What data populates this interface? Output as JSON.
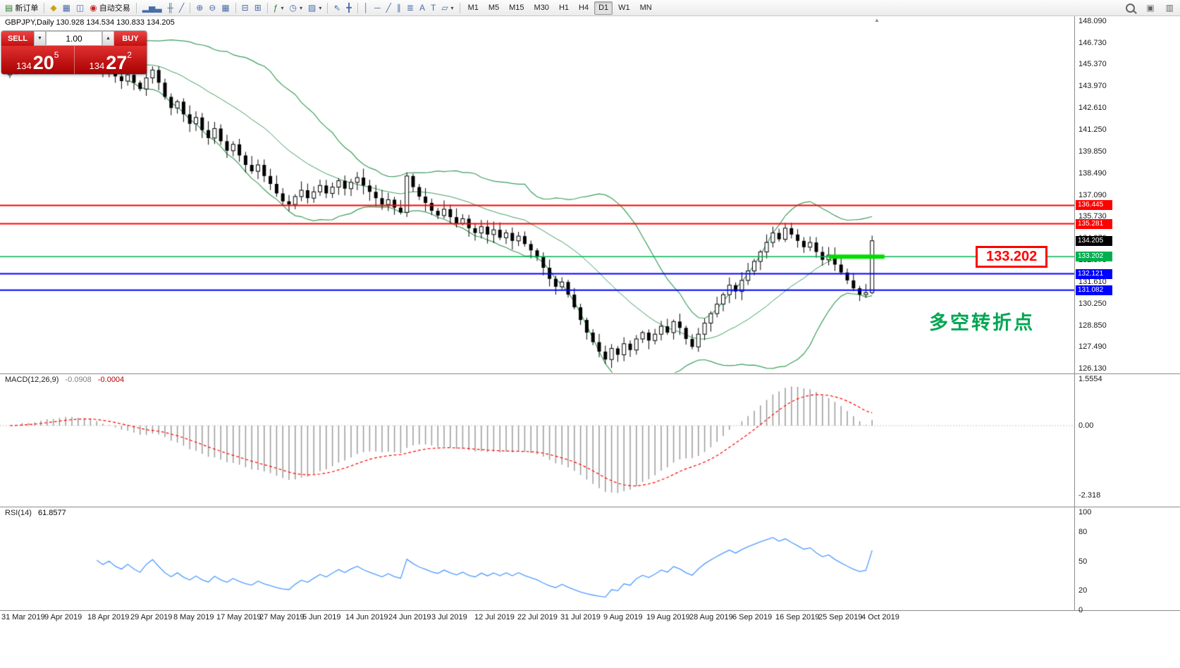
{
  "toolbar": {
    "groups": [
      {
        "items": [
          {
            "name": "new-order-button",
            "glyph": "▤",
            "glyph_color": "#2e7d32",
            "label": "新订单"
          }
        ]
      },
      {
        "items": [
          {
            "name": "market-watch-button",
            "glyph": "◆",
            "glyph_color": "#c8a415"
          },
          {
            "name": "data-window-button",
            "glyph": "▦",
            "glyph_color": "#4a6da7"
          },
          {
            "name": "navigator-button",
            "glyph": "◫",
            "glyph_color": "#4a6da7"
          },
          {
            "name": "autotrading-button",
            "glyph": "◉",
            "glyph_color": "#cc2222",
            "label": "自动交易"
          }
        ]
      },
      {
        "items": [
          {
            "name": "bar-chart-button",
            "glyph": "▂▅▃"
          },
          {
            "name": "candlestick-chart-button",
            "glyph": "╫"
          },
          {
            "name": "line-chart-button",
            "glyph": "╱"
          }
        ]
      },
      {
        "items": [
          {
            "name": "zoom-in-button",
            "glyph": "⊕"
          },
          {
            "name": "zoom-out-button",
            "glyph": "⊖"
          },
          {
            "name": "tile-windows-button",
            "glyph": "▦"
          }
        ]
      },
      {
        "items": [
          {
            "name": "cascade-windows-button",
            "glyph": "⊟"
          },
          {
            "name": "arrange-windows-button",
            "glyph": "⊞"
          }
        ]
      },
      {
        "items": [
          {
            "name": "indicators-button",
            "glyph": "ƒ",
            "glyph_color": "#2e7d32",
            "dropdown": true
          },
          {
            "name": "periods-button",
            "glyph": "◷",
            "dropdown": true
          },
          {
            "name": "templates-button",
            "glyph": "▨",
            "dropdown": true
          }
        ]
      },
      {
        "items": [
          {
            "name": "cursor-button",
            "glyph": "⇖"
          },
          {
            "name": "crosshair-button",
            "glyph": "╋"
          }
        ]
      },
      {
        "items": [
          {
            "name": "vertical-line-button",
            "glyph": "│"
          },
          {
            "name": "horizontal-line-button",
            "glyph": "─"
          },
          {
            "name": "trendline-button",
            "glyph": "╱"
          },
          {
            "name": "channel-button",
            "glyph": "∥"
          },
          {
            "name": "fibonacci-button",
            "glyph": "≣"
          },
          {
            "name": "text-button",
            "glyph": "A"
          },
          {
            "name": "label-button",
            "glyph": "T"
          },
          {
            "name": "shapes-button",
            "glyph": "▱",
            "dropdown": true
          }
        ]
      }
    ],
    "timeframes": [
      {
        "label": "M1"
      },
      {
        "label": "M5"
      },
      {
        "label": "M15"
      },
      {
        "label": "M30"
      },
      {
        "label": "H1"
      },
      {
        "label": "H4"
      },
      {
        "label": "D1",
        "active": true
      },
      {
        "label": "W1"
      },
      {
        "label": "MN"
      }
    ],
    "right_items": [
      {
        "name": "search-button",
        "css_icon": "magnifier"
      },
      {
        "name": "fullscreen-button",
        "glyph": "▣"
      },
      {
        "name": "window-list-button",
        "glyph": "▥"
      }
    ]
  },
  "trade_panel": {
    "sell_label": "SELL",
    "buy_label": "BUY",
    "volume": "1.00",
    "caret_down": "▼",
    "caret_up": "▲",
    "sell_price": {
      "base": "134",
      "big": "20",
      "sup": "5"
    },
    "buy_price": {
      "base": "134",
      "big": "27",
      "sup": "2"
    }
  },
  "chart": {
    "header": "GBPJPY,Daily  130.928 134.534 130.833 134.205",
    "levels": [
      {
        "label": "136.445",
        "price": 136.445,
        "color": "#ff0000",
        "width": 2
      },
      {
        "label": "135.281",
        "price": 135.281,
        "color": "#ff0000",
        "width": 2
      },
      {
        "label": "134.205",
        "price": 134.205,
        "color": "#000000",
        "width": 1,
        "line": false,
        "current": true
      },
      {
        "label": "133.202",
        "price": 133.202,
        "color": "#00b050",
        "width": 1.5
      },
      {
        "label": "132.121",
        "price": 132.121,
        "color": "#0000ff",
        "width": 2
      },
      {
        "label": "131.082",
        "price": 131.082,
        "color": "#0000ff",
        "width": 2
      }
    ],
    "highlight_segment": {
      "price": 133.202,
      "from_index": 132,
      "to_index": 141,
      "color": "#00dd00",
      "width": 6
    }
  },
  "price_axis": {
    "ticks": [
      "148.090",
      "146.730",
      "145.370",
      "143.970",
      "142.610",
      "141.250",
      "139.850",
      "138.490",
      "137.090",
      "135.730",
      "134.370",
      "132.970",
      "131.610",
      "130.250",
      "128.850",
      "127.490",
      "126.130"
    ]
  },
  "macd": {
    "name": "MACD(12,26,9)",
    "value1": "-0.0908",
    "value2": "-0.0004",
    "ticks": [
      {
        "label": "1.5554",
        "value": 1.5554
      },
      {
        "label": "0.00",
        "value": 0
      },
      {
        "label": "-2.318",
        "value": -2.318
      }
    ]
  },
  "rsi": {
    "name": "RSI(14)",
    "value": "61.8577",
    "ticks": [
      {
        "label": "100",
        "value": 100
      },
      {
        "label": "80",
        "value": 80
      },
      {
        "label": "50",
        "value": 50
      },
      {
        "label": "20",
        "value": 20
      },
      {
        "label": "0",
        "value": 0
      }
    ]
  },
  "annotations": {
    "price_box": "133.202",
    "turning_point": "多空转折点"
  },
  "icons": {
    "shift_marker": "▲"
  },
  "colors": {
    "candle_outline": "#000000",
    "candle_bull_fill": "#ffffff",
    "candle_bear_fill": "#000000",
    "bollinger": "#3c9e5c",
    "macd_histogram": "#9a9a9a",
    "macd_signal": "#ff0000",
    "rsi_line": "#4f9bff"
  },
  "x_axis": {
    "dates": [
      "31 Mar 2019",
      "9 Apr 2019",
      "18 Apr 2019",
      "29 Apr 2019",
      "8 May 2019",
      "17 May 2019",
      "27 May 2019",
      "5 Jun 2019",
      "14 Jun 2019",
      "24 Jun 2019",
      "3 Jul 2019",
      "12 Jul 2019",
      "22 Jul 2019",
      "31 Jul 2019",
      "9 Aug 2019",
      "19 Aug 2019",
      "28 Aug 2019",
      "6 Sep 2019",
      "16 Sep 2019",
      "25 Sep 2019",
      "4 Oct 2019"
    ]
  },
  "chart_data": {
    "type": "candlestick",
    "symbol": "GBPJPY",
    "timeframe": "Daily",
    "last_ohlc": {
      "open": 130.928,
      "high": 134.534,
      "low": 130.833,
      "close": 134.205
    },
    "price_range": [
      126.13,
      148.09
    ],
    "closes": [
      145.1,
      145.5,
      145.8,
      145.4,
      145.7,
      146.0,
      146.3,
      145.9,
      146.2,
      146.4,
      146.1,
      145.8,
      146.0,
      145.6,
      145.2,
      144.8,
      145.1,
      144.6,
      144.3,
      144.7,
      144.2,
      143.8,
      144.5,
      145.0,
      144.2,
      143.3,
      142.6,
      143.0,
      142.2,
      141.6,
      142.0,
      141.2,
      140.7,
      141.3,
      140.5,
      139.9,
      140.3,
      139.6,
      139.0,
      138.6,
      139.0,
      138.3,
      137.8,
      137.2,
      136.7,
      136.5,
      137.0,
      137.4,
      136.9,
      137.3,
      137.7,
      137.2,
      137.6,
      138.0,
      137.5,
      137.9,
      138.2,
      137.7,
      137.3,
      136.9,
      136.5,
      136.8,
      136.3,
      136.0,
      138.3,
      137.6,
      137.0,
      136.6,
      136.1,
      135.8,
      136.2,
      135.7,
      135.3,
      135.6,
      135.0,
      134.7,
      135.1,
      134.6,
      134.9,
      134.4,
      134.7,
      134.2,
      134.5,
      134.0,
      133.6,
      133.2,
      132.5,
      131.8,
      131.3,
      131.6,
      130.8,
      130.0,
      129.2,
      128.4,
      127.8,
      127.2,
      126.7,
      127.4,
      127.0,
      127.7,
      127.3,
      128.0,
      128.4,
      127.9,
      128.3,
      128.8,
      128.4,
      129.1,
      128.7,
      128.0,
      127.5,
      128.3,
      129.0,
      129.6,
      130.2,
      130.8,
      131.4,
      131.0,
      131.7,
      132.3,
      132.9,
      133.5,
      134.1,
      134.7,
      134.3,
      135.0,
      134.6,
      134.2,
      133.8,
      134.1,
      133.5,
      133.0,
      133.3,
      132.7,
      132.2,
      131.7,
      131.2,
      130.8,
      130.93,
      134.205
    ],
    "indicators": [
      {
        "name": "Bollinger Bands",
        "period": 20,
        "deviation": 2
      },
      {
        "name": "MACD",
        "params": "12,26,9",
        "current_values": [
          -0.0908,
          -0.0004
        ],
        "axis": [
          1.5554,
          -2.318
        ]
      },
      {
        "name": "RSI",
        "period": 14,
        "current_value": 61.8577,
        "axis": [
          0,
          100
        ]
      }
    ],
    "horizontal_levels": [
      136.445,
      135.281,
      133.202,
      132.121,
      131.082
    ],
    "current_price": 134.205
  }
}
